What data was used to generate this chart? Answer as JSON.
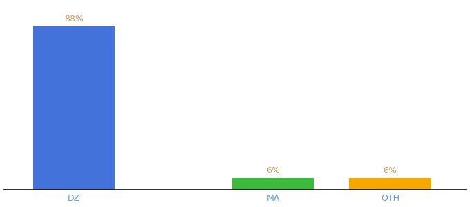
{
  "categories": [
    "DZ",
    "MA",
    "OTH"
  ],
  "values": [
    88,
    6,
    6
  ],
  "bar_colors": [
    "#4472db",
    "#3dba3d",
    "#f5a800"
  ],
  "label_colors": [
    "#c8a060",
    "#c8a060",
    "#c8a060"
  ],
  "value_labels": [
    "88%",
    "6%",
    "6%"
  ],
  "ylim": [
    0,
    100
  ],
  "background_color": "#ffffff",
  "xlabel_color": "#5b9bd5",
  "tick_label_fontsize": 9,
  "value_label_fontsize": 9,
  "bar_width": 0.7,
  "x_positions": [
    0.5,
    2.2,
    3.2
  ],
  "xlim": [
    -0.1,
    3.85
  ]
}
